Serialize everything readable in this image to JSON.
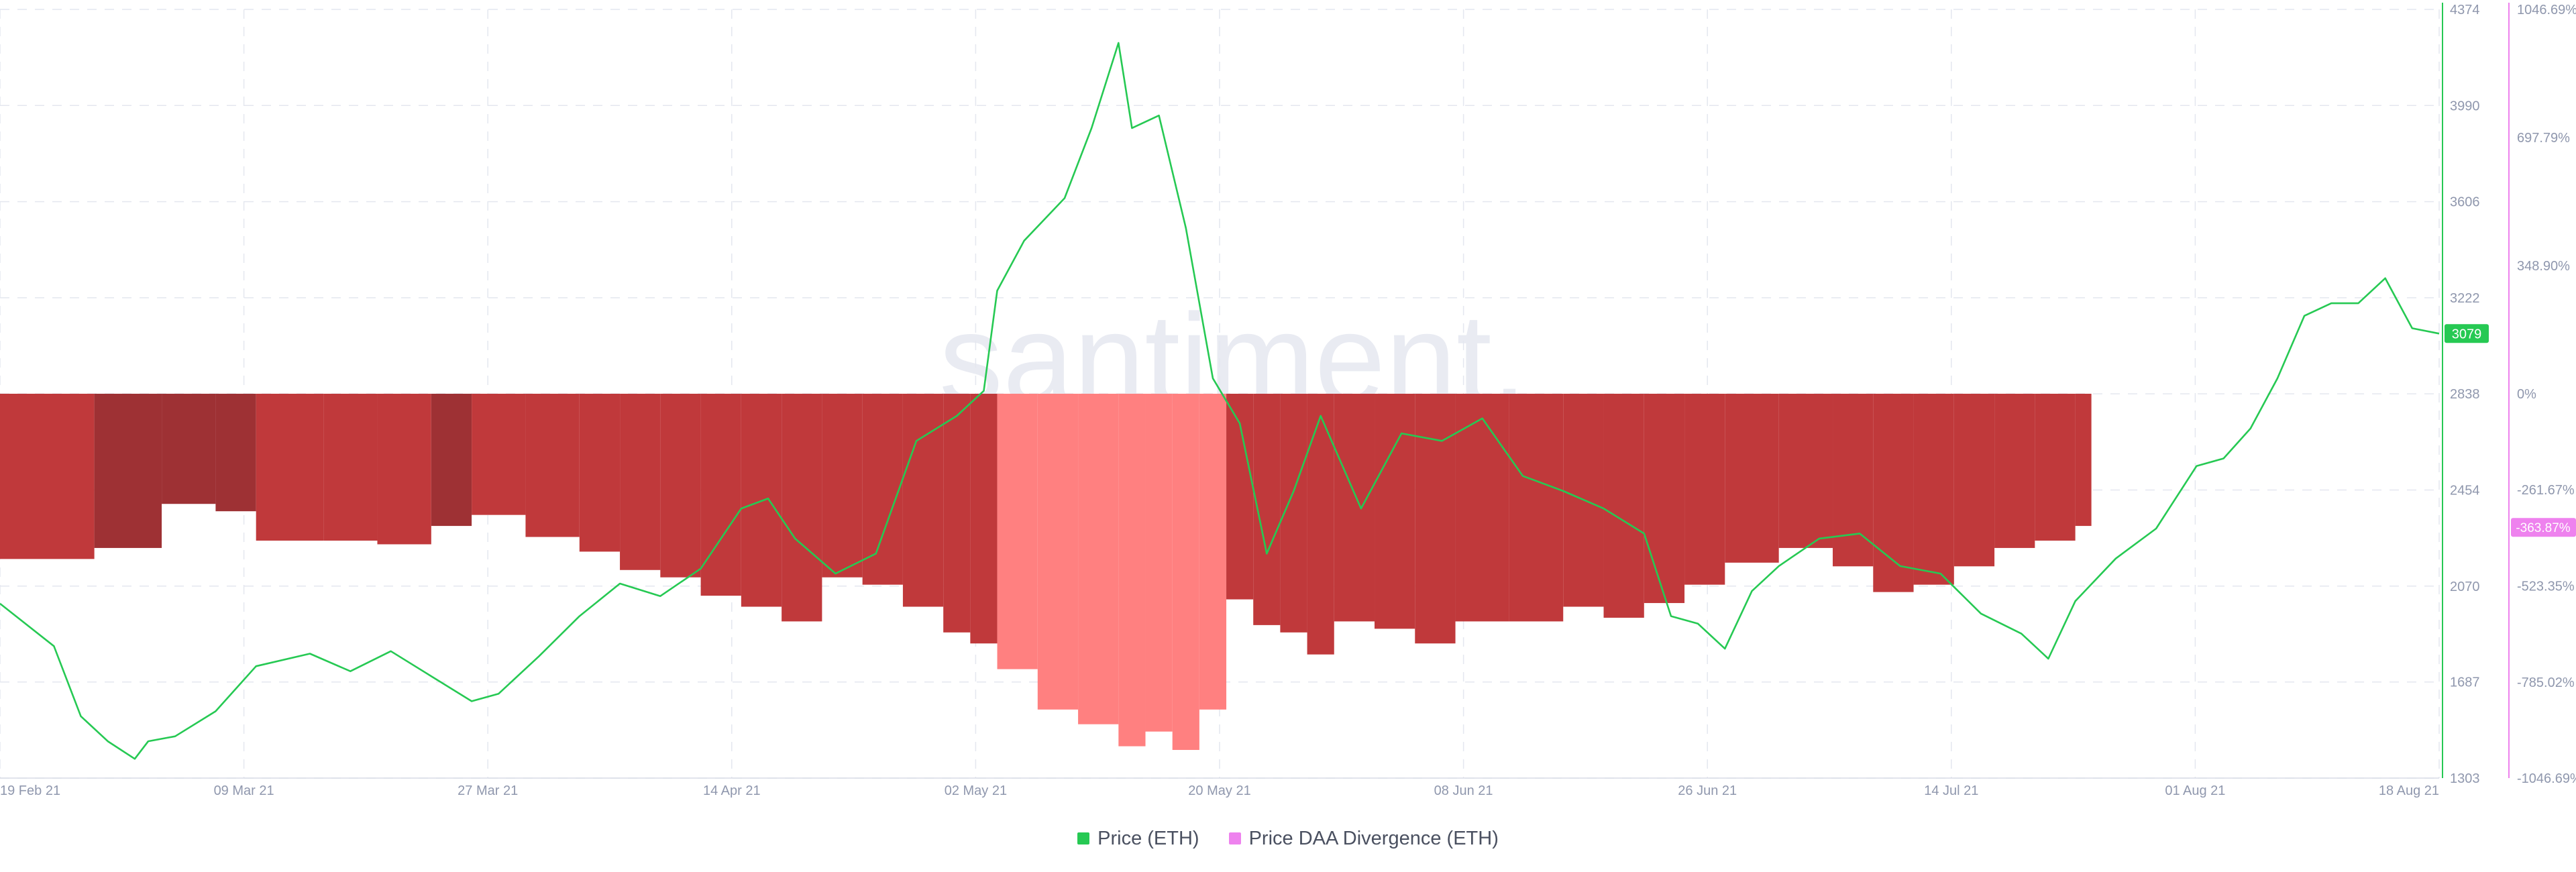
{
  "watermark": "santiment.",
  "legend": [
    {
      "label": "Price (ETH)",
      "color": "#26c953"
    },
    {
      "label": "Price DAA Divergence (ETH)",
      "color": "#ee82ee"
    }
  ],
  "colors": {
    "price_line": "#26c953",
    "divergence_negative": "#c0393b",
    "divergence_negative_dark": "#9e3134",
    "divergence_positive": "#ff8080",
    "divergence_axis": "#ee82ee",
    "grid": "#e4e7ef",
    "tick_text": "#8f97ad"
  },
  "chart_data": {
    "type": "line",
    "x_range": [
      "2021-02-18",
      "2021-08-18"
    ],
    "grid": true,
    "legend_position": "bottom-center",
    "x_ticks": [
      "19 Feb 21",
      "09 Mar 21",
      "27 Mar 21",
      "14 Apr 21",
      "02 May 21",
      "20 May 21",
      "08 Jun 21",
      "26 Jun 21",
      "14 Jul 21",
      "01 Aug 21",
      "18 Aug 21"
    ],
    "y_left": {
      "name": "Price (ETH)",
      "range": [
        1303,
        4374
      ],
      "ticks": [
        4374,
        3990,
        3606,
        3222,
        2838,
        2454,
        2070,
        1687,
        1303
      ],
      "current_value": 3079
    },
    "y_right": {
      "name": "Price DAA Divergence (ETH)",
      "range": [
        -1046.69,
        1046.69
      ],
      "ticks": [
        "1046.69%",
        "697.79%",
        "348.90%",
        "0%",
        "-261.67%",
        "-523.35%",
        "-785.02%",
        "-1046.69%"
      ],
      "current_value": "-363.87%"
    },
    "series": [
      {
        "name": "Price (ETH)",
        "points": [
          [
            "2021-02-18",
            2000
          ],
          [
            "2021-02-22",
            1830
          ],
          [
            "2021-02-24",
            1550
          ],
          [
            "2021-02-26",
            1450
          ],
          [
            "2021-02-28",
            1380
          ],
          [
            "2021-03-01",
            1450
          ],
          [
            "2021-03-03",
            1470
          ],
          [
            "2021-03-06",
            1570
          ],
          [
            "2021-03-09",
            1750
          ],
          [
            "2021-03-13",
            1800
          ],
          [
            "2021-03-16",
            1730
          ],
          [
            "2021-03-19",
            1810
          ],
          [
            "2021-03-22",
            1710
          ],
          [
            "2021-03-25",
            1610
          ],
          [
            "2021-03-27",
            1640
          ],
          [
            "2021-03-30",
            1790
          ],
          [
            "2021-04-02",
            1950
          ],
          [
            "2021-04-05",
            2080
          ],
          [
            "2021-04-08",
            2030
          ],
          [
            "2021-04-11",
            2140
          ],
          [
            "2021-04-14",
            2380
          ],
          [
            "2021-04-16",
            2420
          ],
          [
            "2021-04-18",
            2260
          ],
          [
            "2021-04-21",
            2120
          ],
          [
            "2021-04-24",
            2200
          ],
          [
            "2021-04-27",
            2650
          ],
          [
            "2021-04-30",
            2750
          ],
          [
            "2021-05-02",
            2850
          ],
          [
            "2021-05-03",
            3250
          ],
          [
            "2021-05-05",
            3450
          ],
          [
            "2021-05-08",
            3620
          ],
          [
            "2021-05-10",
            3900
          ],
          [
            "2021-05-12",
            4240
          ],
          [
            "2021-05-13",
            3900
          ],
          [
            "2021-05-15",
            3950
          ],
          [
            "2021-05-17",
            3500
          ],
          [
            "2021-05-19",
            2900
          ],
          [
            "2021-05-21",
            2720
          ],
          [
            "2021-05-23",
            2200
          ],
          [
            "2021-05-25",
            2450
          ],
          [
            "2021-05-27",
            2750
          ],
          [
            "2021-05-30",
            2380
          ],
          [
            "2021-06-02",
            2680
          ],
          [
            "2021-06-05",
            2650
          ],
          [
            "2021-06-08",
            2740
          ],
          [
            "2021-06-11",
            2510
          ],
          [
            "2021-06-14",
            2450
          ],
          [
            "2021-06-17",
            2380
          ],
          [
            "2021-06-20",
            2280
          ],
          [
            "2021-06-22",
            1950
          ],
          [
            "2021-06-24",
            1920
          ],
          [
            "2021-06-26",
            1820
          ],
          [
            "2021-06-28",
            2050
          ],
          [
            "2021-06-30",
            2150
          ],
          [
            "2021-07-03",
            2260
          ],
          [
            "2021-07-06",
            2280
          ],
          [
            "2021-07-09",
            2150
          ],
          [
            "2021-07-12",
            2120
          ],
          [
            "2021-07-15",
            1960
          ],
          [
            "2021-07-18",
            1880
          ],
          [
            "2021-07-20",
            1780
          ],
          [
            "2021-07-22",
            2010
          ],
          [
            "2021-07-25",
            2180
          ],
          [
            "2021-07-28",
            2300
          ],
          [
            "2021-07-31",
            2550
          ],
          [
            "2021-08-02",
            2580
          ],
          [
            "2021-08-04",
            2700
          ],
          [
            "2021-08-06",
            2900
          ],
          [
            "2021-08-08",
            3150
          ],
          [
            "2021-08-10",
            3200
          ],
          [
            "2021-08-12",
            3200
          ],
          [
            "2021-08-14",
            3300
          ],
          [
            "2021-08-16",
            3100
          ],
          [
            "2021-08-18",
            3079
          ]
        ]
      },
      {
        "name": "Price DAA Divergence (ETH)",
        "type": "bar",
        "points": [
          [
            "2021-02-18",
            -450
          ],
          [
            "2021-02-25",
            -420
          ],
          [
            "2021-03-02",
            -300
          ],
          [
            "2021-03-06",
            -320
          ],
          [
            "2021-03-09",
            -400
          ],
          [
            "2021-03-14",
            -400
          ],
          [
            "2021-03-18",
            -410
          ],
          [
            "2021-03-22",
            -360
          ],
          [
            "2021-03-25",
            -330
          ],
          [
            "2021-03-29",
            -390
          ],
          [
            "2021-04-02",
            -430
          ],
          [
            "2021-04-05",
            -480
          ],
          [
            "2021-04-08",
            -500
          ],
          [
            "2021-04-11",
            -550
          ],
          [
            "2021-04-14",
            -580
          ],
          [
            "2021-04-17",
            -620
          ],
          [
            "2021-04-20",
            -500
          ],
          [
            "2021-04-23",
            -520
          ],
          [
            "2021-04-26",
            -580
          ],
          [
            "2021-04-29",
            -650
          ],
          [
            "2021-05-01",
            -680
          ],
          [
            "2021-05-03",
            -750
          ],
          [
            "2021-05-06",
            -860
          ],
          [
            "2021-05-09",
            -900
          ],
          [
            "2021-05-12",
            -960
          ],
          [
            "2021-05-14",
            -920
          ],
          [
            "2021-05-16",
            -970
          ],
          [
            "2021-05-18",
            -860
          ],
          [
            "2021-05-20",
            -560
          ],
          [
            "2021-05-22",
            -630
          ],
          [
            "2021-05-24",
            -650
          ],
          [
            "2021-05-26",
            -710
          ],
          [
            "2021-05-28",
            -620
          ],
          [
            "2021-05-31",
            -640
          ],
          [
            "2021-06-03",
            -680
          ],
          [
            "2021-06-06",
            -620
          ],
          [
            "2021-06-10",
            -620
          ],
          [
            "2021-06-14",
            -580
          ],
          [
            "2021-06-17",
            -610
          ],
          [
            "2021-06-20",
            -570
          ],
          [
            "2021-06-23",
            -520
          ],
          [
            "2021-06-26",
            -460
          ],
          [
            "2021-06-30",
            -420
          ],
          [
            "2021-07-04",
            -470
          ],
          [
            "2021-07-07",
            -540
          ],
          [
            "2021-07-10",
            -520
          ],
          [
            "2021-07-13",
            -470
          ],
          [
            "2021-07-16",
            -420
          ],
          [
            "2021-07-19",
            -400
          ],
          [
            "2021-07-22",
            -360
          ]
        ]
      }
    ]
  }
}
